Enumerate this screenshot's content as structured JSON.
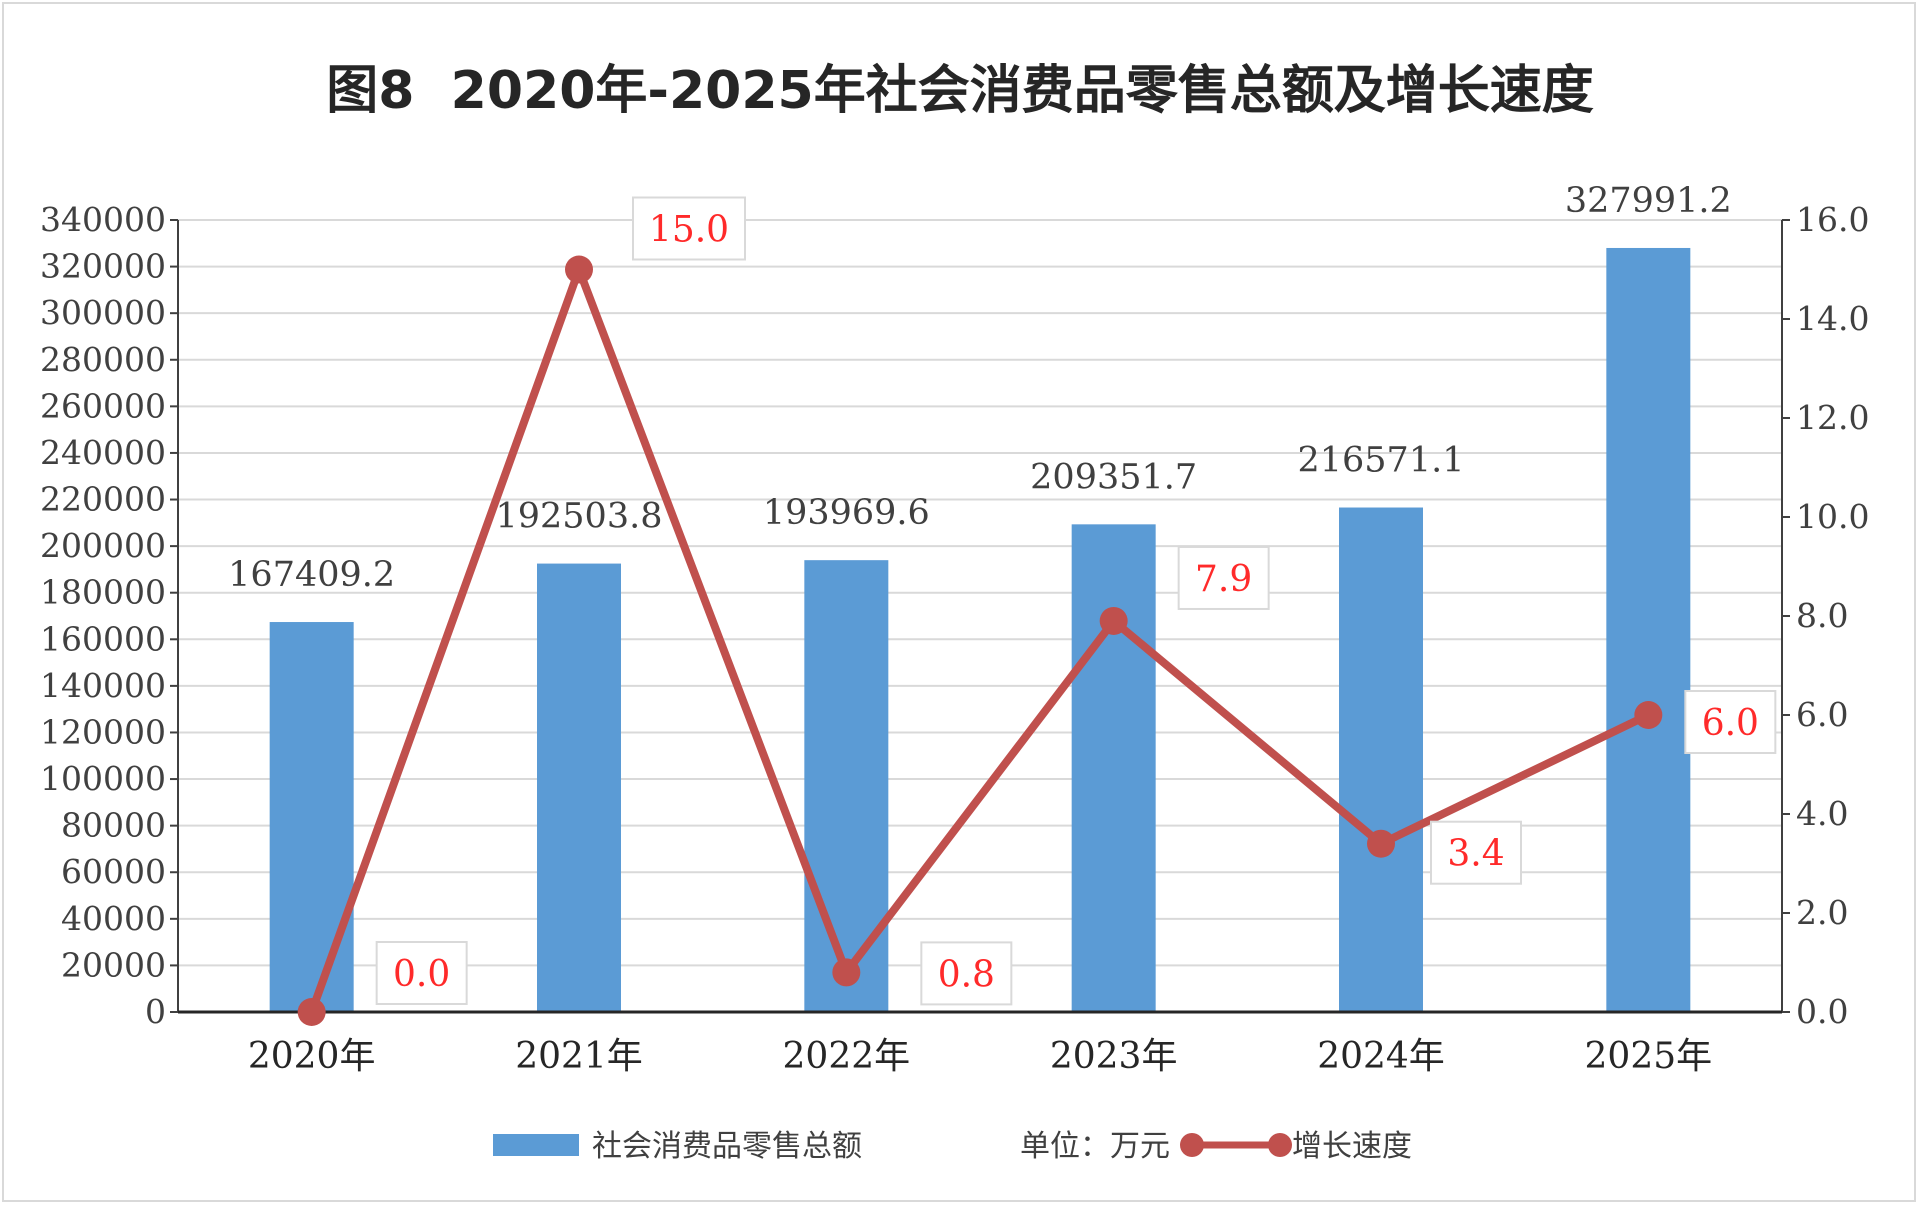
{
  "chart_data": {
    "type": "bar",
    "title": "图8  2020年-2025年社会消费品零售总额及增长速度",
    "categories": [
      "2020年",
      "2021年",
      "2022年",
      "2023年",
      "2024年",
      "2025年"
    ],
    "series": [
      {
        "name": "社会消费品零售总额",
        "type": "bar",
        "axis": "left",
        "values": [
          167409.2,
          192503.8,
          193969.6,
          209351.7,
          216571.1,
          327991.2
        ],
        "labels": [
          "167409.2",
          "192503.8",
          "193969.6",
          "209351.7",
          "216571.1",
          "327991.2"
        ],
        "color": "#5b9bd5"
      },
      {
        "name": "增长速度",
        "type": "line",
        "axis": "right",
        "values": [
          0.0,
          15.0,
          0.8,
          7.9,
          3.4,
          6.0
        ],
        "labels": [
          "0.0",
          "15.0",
          "0.8",
          "7.9",
          "3.4",
          "6.0"
        ],
        "color": "#c0504d",
        "label_color": "#ff2a2a"
      }
    ],
    "y_left": {
      "min": 0,
      "max": 340000,
      "step": 20000,
      "ticks": [
        "0",
        "20000",
        "40000",
        "60000",
        "80000",
        "100000",
        "120000",
        "140000",
        "160000",
        "180000",
        "200000",
        "220000",
        "240000",
        "260000",
        "280000",
        "300000",
        "320000",
        "340000"
      ]
    },
    "y_right": {
      "min": 0,
      "max": 16,
      "step": 2,
      "ticks": [
        "0.0",
        "2.0",
        "4.0",
        "6.0",
        "8.0",
        "10.0",
        "12.0",
        "14.0",
        "16.0"
      ]
    },
    "grid": true,
    "legend_position": "bottom",
    "unit_text": "单位：万元"
  }
}
